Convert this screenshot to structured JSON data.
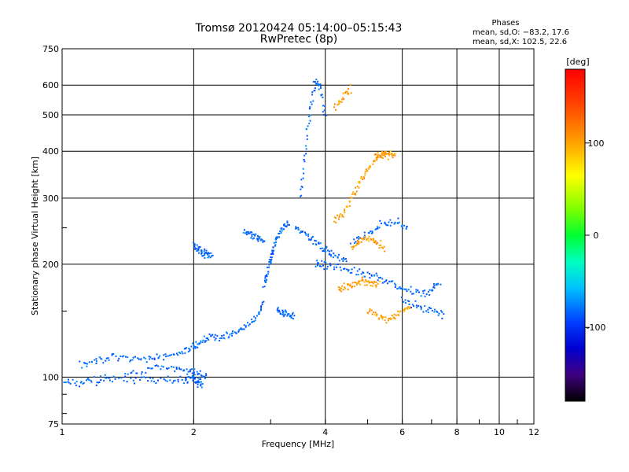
{
  "chart_data": {
    "type": "scatter",
    "title": "Tromsø 20120424 05:14:00–05:15:43",
    "subtitle": "RwPretec (8p)",
    "xlabel": "Frequency [MHz]",
    "ylabel": "Stationary phase Virtual Height [km]",
    "xscale": "log",
    "yscale": "log",
    "xlim": [
      1,
      12
    ],
    "ylim": [
      75,
      750
    ],
    "xticks": [
      1,
      2,
      4,
      6,
      8,
      10,
      12
    ],
    "yticks": [
      75,
      100,
      200,
      300,
      400,
      500,
      600,
      750
    ],
    "grid": true,
    "phases_box": {
      "heading": "Phases",
      "line_o": "mean, sd,O: −83.2, 17.6",
      "line_x": "mean, sd,X: 102.5, 22.6"
    },
    "colorbar": {
      "label": "[deg]",
      "range": [
        -180,
        180
      ],
      "ticks": [
        "100",
        "0",
        "-100"
      ],
      "tick_values": [
        100,
        0,
        -100
      ]
    },
    "series": [
      {
        "polarization": "O",
        "phase_mean": -83.2,
        "phase_sd": 17.6,
        "traces": [
          {
            "x": [
              1.0,
              1.1,
              1.2,
              1.3,
              1.5,
              1.7,
              1.9,
              2.0,
              2.05,
              2.1
            ],
            "y": [
              97,
              97,
              98,
              99,
              99,
              98,
              98,
              99,
              97,
              96
            ]
          },
          {
            "x": [
              1.1,
              1.2,
              1.3,
              1.45,
              1.6,
              1.75,
              1.9,
              2.0,
              2.1,
              2.2,
              2.35,
              2.5,
              2.65,
              2.8,
              2.9
            ],
            "y": [
              108,
              110,
              113,
              112,
              112,
              114,
              117,
              120,
              125,
              128,
              128,
              132,
              137,
              145,
              160
            ]
          },
          {
            "x": [
              1.4,
              1.6,
              1.8,
              1.95,
              2.05,
              2.15
            ],
            "y": [
              102,
              105,
              105,
              104,
              102,
              100
            ]
          },
          {
            "x": [
              2.0,
              2.05,
              2.1,
              2.15,
              2.2
            ],
            "y": [
              225,
              220,
              215,
              212,
              210
            ]
          },
          {
            "x": [
              2.6,
              2.7,
              2.8,
              2.9
            ],
            "y": [
              245,
              240,
              235,
              230
            ]
          },
          {
            "x": [
              2.9,
              2.95,
              3.0,
              3.05,
              3.1,
              3.2,
              3.3
            ],
            "y": [
              175,
              190,
              205,
              220,
              235,
              250,
              260
            ]
          },
          {
            "x": [
              3.1,
              3.2,
              3.3,
              3.4
            ],
            "y": [
              150,
              148,
              147,
              145
            ]
          },
          {
            "x": [
              3.5,
              3.6,
              3.7,
              3.8,
              3.9,
              4.0
            ],
            "y": [
              300,
              400,
              520,
              620,
              590,
              480
            ]
          },
          {
            "x": [
              3.4,
              3.6,
              3.8,
              4.0,
              4.2,
              4.5
            ],
            "y": [
              250,
              240,
              230,
              220,
              210,
              205
            ]
          },
          {
            "x": [
              3.8,
              4.0,
              4.4,
              4.8,
              5.2,
              5.6,
              6.0,
              6.5,
              7.0,
              7.3
            ],
            "y": [
              200,
              198,
              195,
              190,
              185,
              180,
              172,
              168,
              170,
              180
            ]
          },
          {
            "x": [
              4.6,
              5.0,
              5.4,
              5.8,
              6.2
            ],
            "y": [
              230,
              240,
              255,
              260,
              250
            ]
          },
          {
            "x": [
              6.0,
              6.5,
              7.0,
              7.5
            ],
            "y": [
              160,
              155,
              150,
              145
            ]
          }
        ]
      },
      {
        "polarization": "X",
        "phase_mean": 102.5,
        "phase_sd": 22.6,
        "traces": [
          {
            "x": [
              4.2,
              4.4,
              4.6,
              4.8,
              5.0,
              5.3,
              5.6
            ],
            "y": [
              260,
              275,
              300,
              330,
              360,
              390,
              395
            ]
          },
          {
            "x": [
              4.3,
              4.5,
              4.7,
              4.9,
              5.1,
              5.3
            ],
            "y": [
              170,
              175,
              178,
              180,
              178,
              175
            ]
          },
          {
            "x": [
              4.6,
              4.8,
              5.0,
              5.2,
              5.5
            ],
            "y": [
              220,
              230,
              235,
              230,
              220
            ]
          },
          {
            "x": [
              4.2,
              4.4,
              4.6
            ],
            "y": [
              520,
              560,
              590
            ]
          },
          {
            "x": [
              5.2,
              5.4,
              5.6,
              5.8
            ],
            "y": [
              385,
              390,
              392,
              388
            ]
          },
          {
            "x": [
              5.0,
              5.3,
              5.6,
              5.9,
              6.3
            ],
            "y": [
              150,
              145,
              142,
              148,
              155
            ]
          }
        ]
      }
    ]
  }
}
